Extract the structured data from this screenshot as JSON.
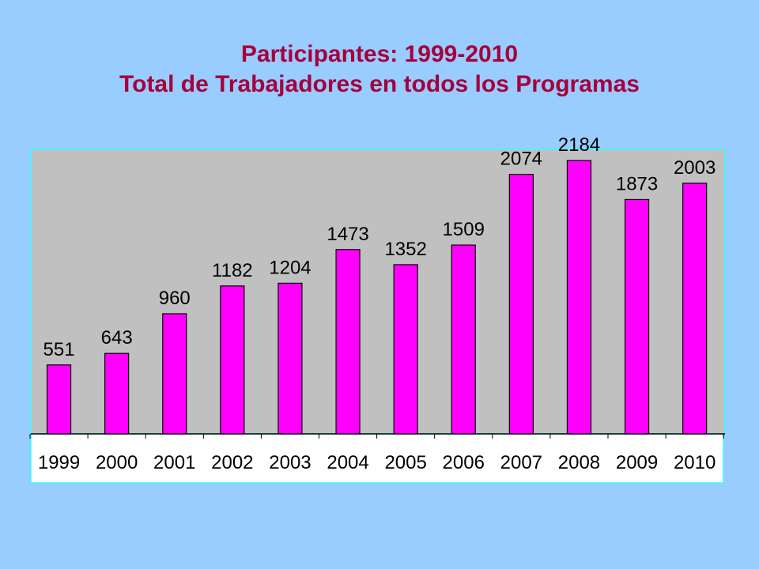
{
  "title": {
    "line1": "Participantes: 1999-2010",
    "line2": "Total de Trabajadores en todos los Programas"
  },
  "colors": {
    "background": "#99ccff",
    "title": "#a5003c",
    "plot_area": "#c0c0c0",
    "plot_border": "#33ffff",
    "axis_band": "#ffffff",
    "bar": "#ff00ff",
    "bar_outline": "#000000"
  },
  "chart_data": {
    "type": "bar",
    "title": "Participantes: 1999-2010",
    "subtitle": "Total de Trabajadores en todos los Programas",
    "categories": [
      "1999",
      "2000",
      "2001",
      "2002",
      "2003",
      "2004",
      "2005",
      "2006",
      "2007",
      "2008",
      "2009",
      "2010"
    ],
    "values": [
      551,
      643,
      960,
      1182,
      1204,
      1473,
      1352,
      1509,
      2074,
      2184,
      1873,
      2003
    ],
    "xlabel": "",
    "ylabel": "",
    "ylim": [
      0,
      2400
    ],
    "grid": false,
    "legend": "none",
    "data_labels": true
  }
}
